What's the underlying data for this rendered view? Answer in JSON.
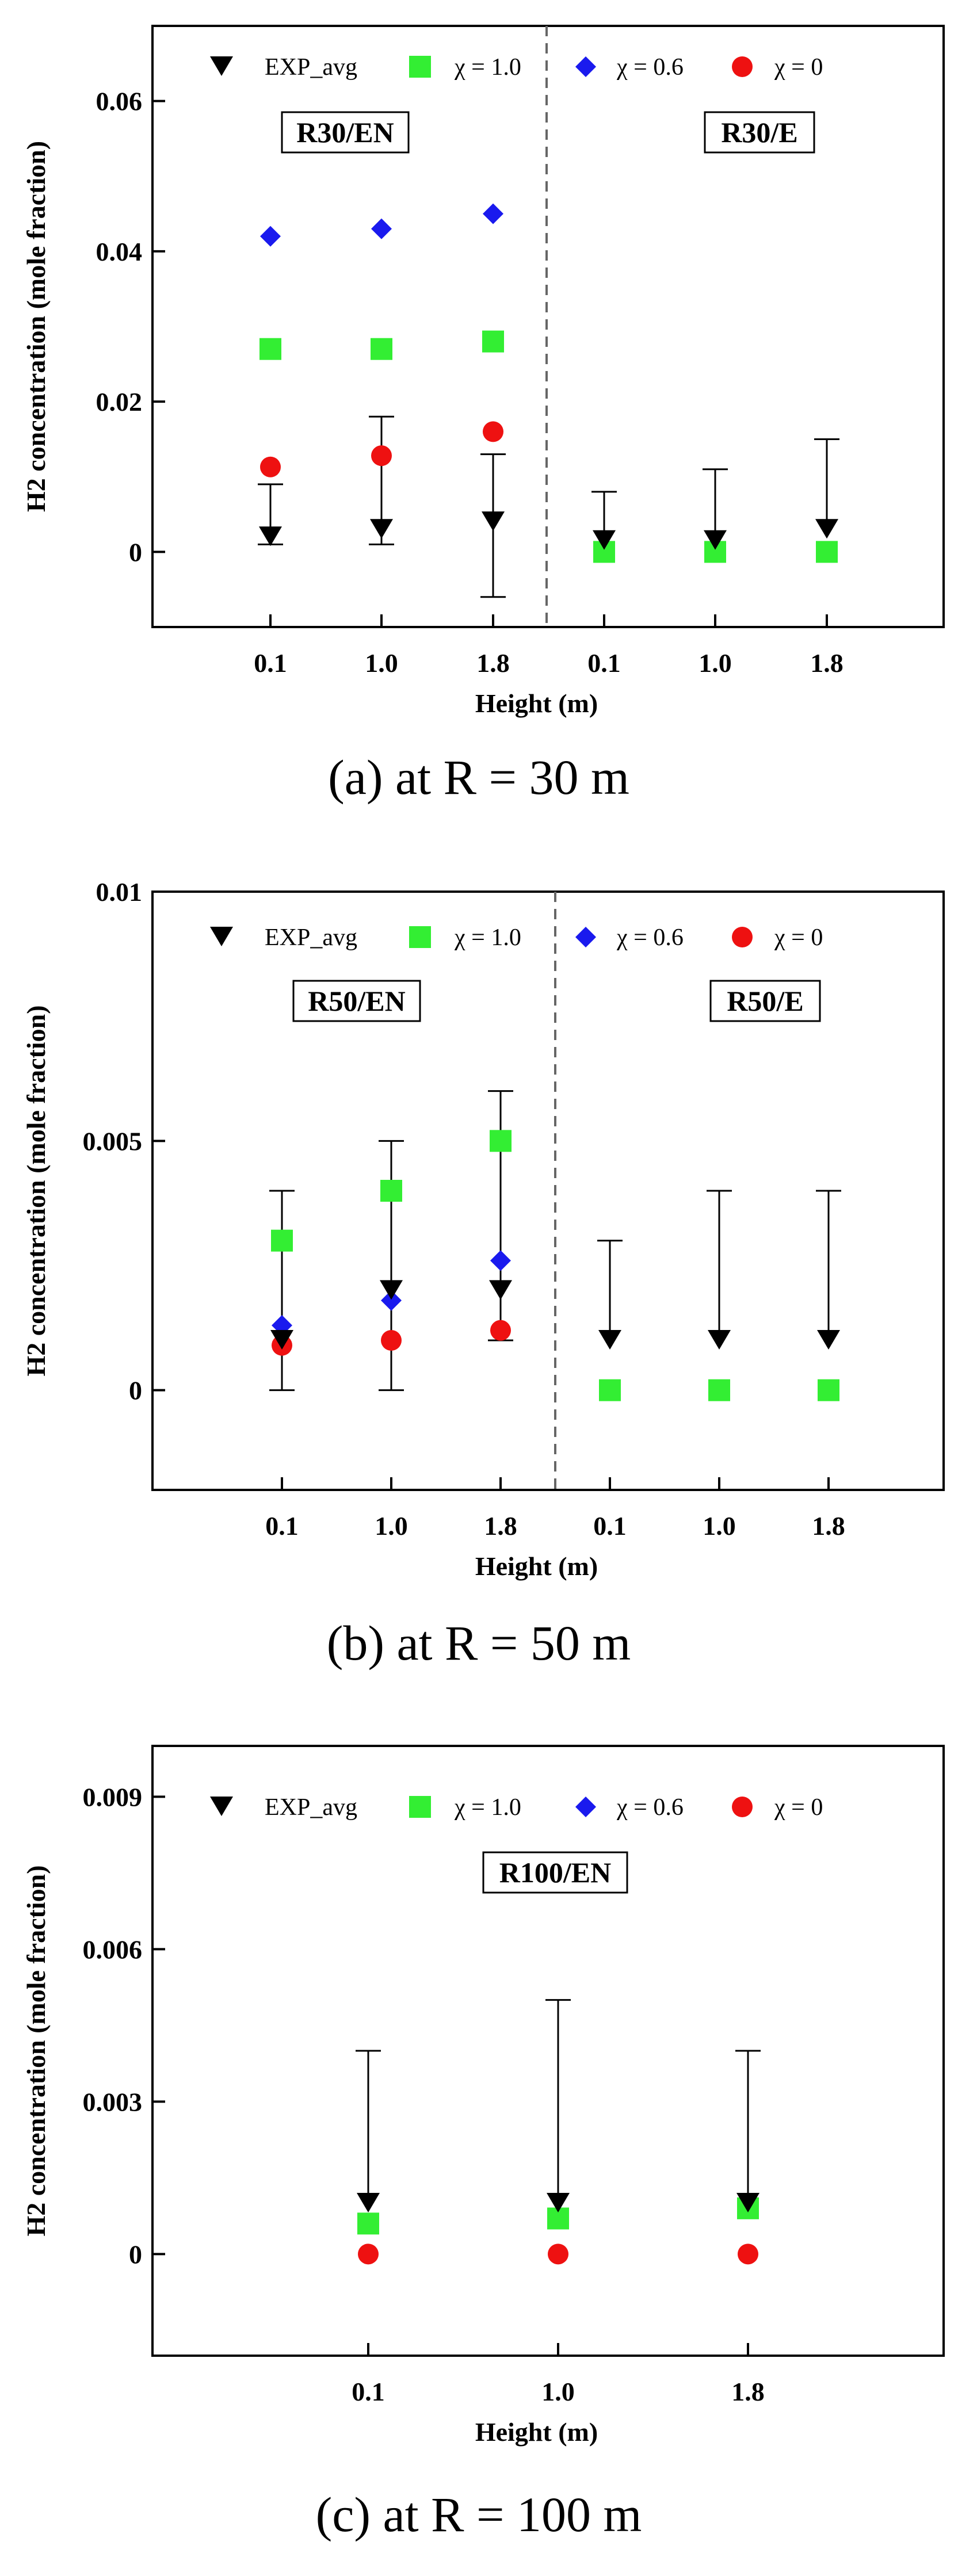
{
  "chart_data": [
    {
      "type": "scatter",
      "panel": "a",
      "caption": "(a) at R = 30 m",
      "xlabel": "Height (m)",
      "ylabel": "H2 concentration (mole fraction)",
      "ylim": [
        -0.01,
        0.07
      ],
      "yticks": [
        0,
        0.02,
        0.04,
        0.06
      ],
      "ytick_labels": [
        "0",
        "0.02",
        "0.04",
        "0.06"
      ],
      "categories": [
        "0.1",
        "1.0",
        "1.8",
        "0.1",
        "1.0",
        "1.8"
      ],
      "regions": [
        {
          "label": "R30/EN",
          "from": 0,
          "to": 2
        },
        {
          "label": "R30/E",
          "from": 3,
          "to": 5
        }
      ],
      "legend": [
        "EXP_avg",
        "χ = 1.0",
        "χ = 0.6",
        "χ = 0"
      ],
      "series": [
        {
          "name": "EXP_avg",
          "marker": "triangle-down",
          "color": "#000000",
          "values": [
            0.002,
            0.003,
            0.004,
            0.0015,
            0.0015,
            0.003
          ],
          "err_low": [
            0.001,
            0.001,
            -0.006,
            null,
            null,
            null
          ],
          "err_high": [
            0.009,
            0.018,
            0.013,
            0.008,
            0.011,
            0.015
          ]
        },
        {
          "name": "χ = 1.0",
          "marker": "square",
          "color": "#33ee33",
          "values": [
            0.027,
            0.027,
            0.028,
            0,
            0,
            0
          ]
        },
        {
          "name": "χ = 0.6",
          "marker": "diamond",
          "color": "#1a1aee",
          "values": [
            0.042,
            0.043,
            0.045,
            null,
            null,
            null
          ]
        },
        {
          "name": "χ = 0",
          "marker": "circle",
          "color": "#ee1111",
          "values": [
            0.0113,
            0.0128,
            0.016,
            null,
            null,
            null
          ]
        }
      ]
    },
    {
      "type": "scatter",
      "panel": "b",
      "caption": "(b) at R = 50 m",
      "xlabel": "Height (m)",
      "ylabel": "H2 concentration (mole fraction)",
      "ylim": [
        -0.002,
        0.01
      ],
      "yticks": [
        0,
        0.005,
        0.01
      ],
      "ytick_labels": [
        "0",
        "0.005",
        "0.01"
      ],
      "categories": [
        "0.1",
        "1.0",
        "1.8",
        "0.1",
        "1.0",
        "1.8"
      ],
      "regions": [
        {
          "label": "R50/EN",
          "from": 0,
          "to": 2
        },
        {
          "label": "R50/E",
          "from": 3,
          "to": 5
        }
      ],
      "legend": [
        "EXP_avg",
        "χ = 1.0",
        "χ = 0.6",
        "χ = 0"
      ],
      "series": [
        {
          "name": "EXP_avg",
          "marker": "triangle-down",
          "color": "#000000",
          "values": [
            0.001,
            0.002,
            0.002,
            0.001,
            0.001,
            0.001
          ],
          "err_low": [
            0,
            0,
            0.001,
            null,
            null,
            null
          ],
          "err_high": [
            0.004,
            0.005,
            0.006,
            0.003,
            0.004,
            0.004
          ]
        },
        {
          "name": "χ = 1.0",
          "marker": "square",
          "color": "#33ee33",
          "values": [
            0.003,
            0.004,
            0.005,
            0,
            0,
            0
          ]
        },
        {
          "name": "χ = 0.6",
          "marker": "diamond",
          "color": "#1a1aee",
          "values": [
            0.0013,
            0.0018,
            0.0026,
            null,
            null,
            null
          ]
        },
        {
          "name": "χ = 0",
          "marker": "circle",
          "color": "#ee1111",
          "values": [
            0.0009,
            0.001,
            0.0012,
            null,
            null,
            null
          ]
        }
      ]
    },
    {
      "type": "scatter",
      "panel": "c",
      "caption": "(c) at R = 100 m",
      "xlabel": "Height (m)",
      "ylabel": "H2 concentration (mole fraction)",
      "ylim": [
        -0.002,
        0.01
      ],
      "yticks": [
        0,
        0.003,
        0.006,
        0.009
      ],
      "ytick_labels": [
        "0",
        "0.003",
        "0.006",
        "0.009"
      ],
      "categories": [
        "0.1",
        "1.0",
        "1.8"
      ],
      "regions": [
        {
          "label": "R100/EN",
          "from": 0,
          "to": 2
        }
      ],
      "legend": [
        "EXP_avg",
        "χ = 1.0",
        "χ = 0.6",
        "χ = 0"
      ],
      "series": [
        {
          "name": "EXP_avg",
          "marker": "triangle-down",
          "color": "#000000",
          "values": [
            0.001,
            0.001,
            0.001
          ],
          "err_low": [
            null,
            null,
            null
          ],
          "err_high": [
            0.004,
            0.005,
            0.004
          ]
        },
        {
          "name": "χ = 1.0",
          "marker": "square",
          "color": "#33ee33",
          "values": [
            0.0006,
            0.0007,
            0.0009
          ]
        },
        {
          "name": "χ = 0.6",
          "marker": "diamond",
          "color": "#1a1aee",
          "values": [
            0,
            0,
            0
          ]
        },
        {
          "name": "χ = 0",
          "marker": "circle",
          "color": "#ee1111",
          "values": [
            0,
            0,
            0
          ]
        }
      ]
    }
  ]
}
